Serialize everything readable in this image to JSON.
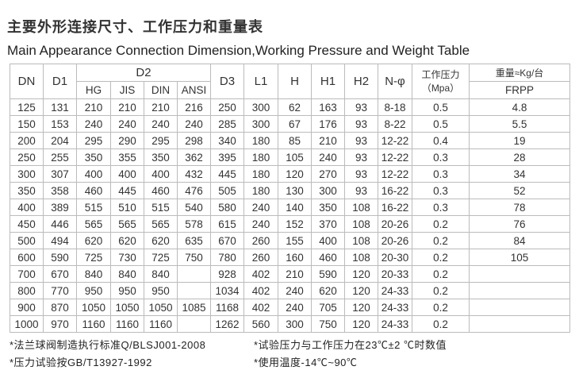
{
  "title_cn": "主要外形连接尺寸、工作压力和重量表",
  "title_en": "Main Appearance Connection Dimension,Working Pressure and Weight Table",
  "headers": {
    "DN": "DN",
    "D1": "D1",
    "D2": "D2",
    "HG": "HG",
    "JIS": "JIS",
    "DIN": "DIN",
    "ANSI": "ANSI",
    "D3": "D3",
    "L1": "L1",
    "H": "H",
    "H1": "H1",
    "H2": "H2",
    "N": "N-φ",
    "pressure": "工作压力",
    "pressure_unit": "（Mpa）",
    "weight": "重量≈Kg/台",
    "material": "FRPP"
  },
  "rows": [
    [
      "125",
      "131",
      "210",
      "210",
      "210",
      "216",
      "250",
      "300",
      "62",
      "163",
      "93",
      "8-18",
      "0.5",
      "4.8"
    ],
    [
      "150",
      "153",
      "240",
      "240",
      "240",
      "240",
      "285",
      "300",
      "67",
      "176",
      "93",
      "8-22",
      "0.5",
      "5.5"
    ],
    [
      "200",
      "204",
      "295",
      "290",
      "295",
      "298",
      "340",
      "180",
      "85",
      "210",
      "93",
      "12-22",
      "0.4",
      "19"
    ],
    [
      "250",
      "255",
      "350",
      "355",
      "350",
      "362",
      "395",
      "180",
      "105",
      "240",
      "93",
      "12-22",
      "0.3",
      "28"
    ],
    [
      "300",
      "307",
      "400",
      "400",
      "400",
      "432",
      "445",
      "180",
      "120",
      "270",
      "93",
      "12-22",
      "0.3",
      "34"
    ],
    [
      "350",
      "358",
      "460",
      "445",
      "460",
      "476",
      "505",
      "180",
      "130",
      "300",
      "93",
      "16-22",
      "0.3",
      "52"
    ],
    [
      "400",
      "389",
      "515",
      "510",
      "515",
      "540",
      "580",
      "240",
      "140",
      "350",
      "108",
      "16-22",
      "0.3",
      "78"
    ],
    [
      "450",
      "446",
      "565",
      "565",
      "565",
      "578",
      "615",
      "240",
      "152",
      "370",
      "108",
      "20-26",
      "0.2",
      "76"
    ],
    [
      "500",
      "494",
      "620",
      "620",
      "620",
      "635",
      "670",
      "260",
      "155",
      "400",
      "108",
      "20-26",
      "0.2",
      "84"
    ],
    [
      "600",
      "590",
      "725",
      "730",
      "725",
      "750",
      "780",
      "260",
      "160",
      "460",
      "108",
      "20-30",
      "0.2",
      "105"
    ],
    [
      "700",
      "670",
      "840",
      "840",
      "840",
      "",
      "928",
      "402",
      "210",
      "590",
      "120",
      "20-33",
      "0.2",
      ""
    ],
    [
      "800",
      "770",
      "950",
      "950",
      "950",
      "",
      "1034",
      "402",
      "240",
      "620",
      "120",
      "24-33",
      "0.2",
      ""
    ],
    [
      "900",
      "870",
      "1050",
      "1050",
      "1050",
      "1085",
      "1168",
      "402",
      "240",
      "705",
      "120",
      "24-33",
      "0.2",
      ""
    ],
    [
      "1000",
      "970",
      "1160",
      "1160",
      "1160",
      "",
      "1262",
      "560",
      "300",
      "750",
      "120",
      "24-33",
      "0.2",
      ""
    ]
  ],
  "notes": [
    "*法兰球阀制造执行标准Q/BLSJ001-2008",
    "*试验压力与工作压力在23℃±2 ℃时数值",
    "*压力试验按GB/T13927-1992",
    "*使用温度-14℃~90℃"
  ]
}
